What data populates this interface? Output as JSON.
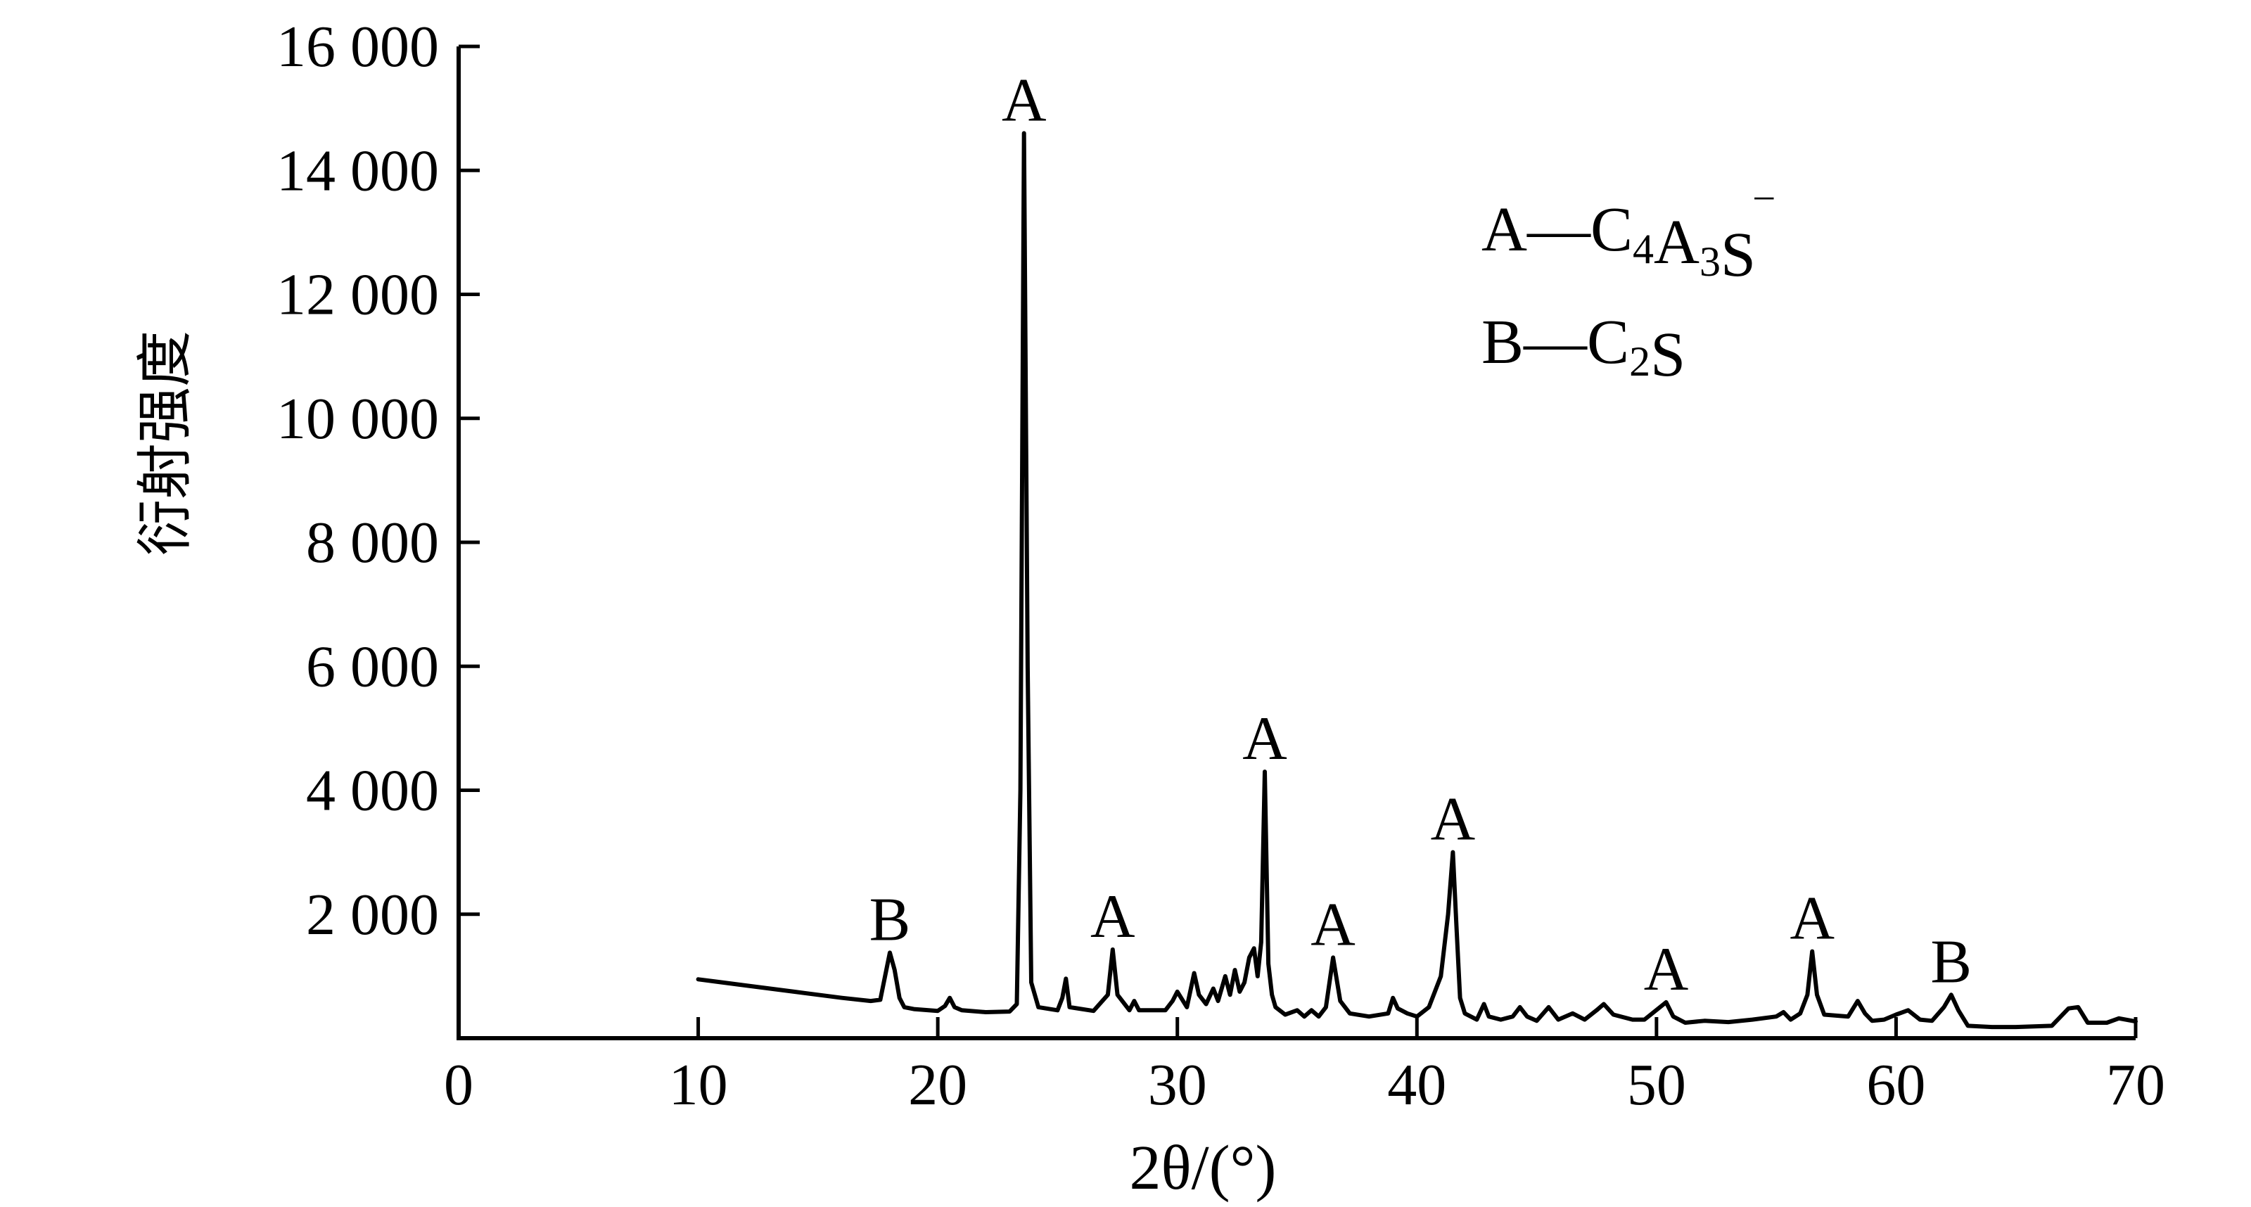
{
  "chart_data": {
    "type": "line",
    "xlabel": "2θ/(°)",
    "ylabel": "衍射强度",
    "xlim": [
      0,
      70
    ],
    "ylim": [
      0,
      16000
    ],
    "x_ticks": [
      0,
      10,
      20,
      30,
      40,
      50,
      60,
      70
    ],
    "x_tick_labels": [
      "0",
      "10",
      "20",
      "30",
      "40",
      "50",
      "60",
      "70"
    ],
    "y_ticks": [
      2000,
      4000,
      6000,
      8000,
      10000,
      12000,
      14000,
      16000
    ],
    "y_tick_labels": [
      "2 000",
      "4 000",
      "6 000",
      "8 000",
      "10 000",
      "12 000",
      "14 000",
      "16 000"
    ],
    "grid": false,
    "legend_position": "top-right",
    "legend": [
      {
        "key": "A",
        "sep": "—",
        "formula": "C",
        "parts": [
          [
            "C",
            ""
          ],
          [
            "4",
            "sub"
          ],
          [
            "A",
            ""
          ],
          [
            "3",
            "sub"
          ],
          [
            "S",
            ""
          ],
          [
            "‾",
            "sup"
          ]
        ]
      },
      {
        "key": "B",
        "sep": "—",
        "formula": "C",
        "parts": [
          [
            "C",
            ""
          ],
          [
            "2",
            "sub"
          ],
          [
            "S",
            ""
          ]
        ]
      }
    ],
    "series": [
      {
        "x": [
          10,
          12,
          14,
          16,
          17.2,
          17.6,
          17.8,
          18.0,
          18.2,
          18.4,
          18.6,
          19.0,
          20.0,
          20.3,
          20.5,
          20.7,
          21.0,
          22.0,
          23.0,
          23.3,
          23.45,
          23.6,
          23.75,
          23.9,
          24.2,
          25.0,
          25.2,
          25.35,
          25.5,
          26.5,
          27.1,
          27.3,
          27.5,
          28.0,
          28.2,
          28.4,
          29.5,
          29.8,
          30.0,
          30.4,
          30.7,
          30.9,
          31.2,
          31.5,
          31.7,
          32.0,
          32.2,
          32.4,
          32.6,
          32.8,
          33.0,
          33.2,
          33.35,
          33.5,
          33.65,
          33.8,
          33.95,
          34.1,
          34.5,
          35.0,
          35.3,
          35.6,
          35.9,
          36.2,
          36.5,
          36.8,
          37.2,
          38.0,
          38.8,
          39.0,
          39.2,
          39.6,
          40.0,
          40.5,
          41.0,
          41.3,
          41.5,
          41.65,
          41.8,
          42.0,
          42.5,
          42.8,
          43.0,
          43.5,
          44.0,
          44.3,
          44.6,
          45.0,
          45.5,
          45.9,
          46.5,
          47.0,
          47.5,
          47.8,
          48.2,
          49.0,
          49.5,
          50.4,
          50.7,
          51.2,
          52.0,
          53.0,
          54.0,
          55.0,
          55.3,
          55.6,
          56.0,
          56.3,
          56.5,
          56.7,
          57.0,
          58.0,
          58.4,
          58.7,
          59.0,
          59.5,
          60.0,
          60.5,
          61.0,
          61.5,
          62.0,
          62.3,
          62.6,
          63.0,
          64.0,
          65.0,
          66.5,
          67.2,
          67.6,
          68.0,
          68.8,
          69.3,
          70.0
        ],
        "y": [
          950,
          850,
          750,
          650,
          600,
          620,
          1000,
          1380,
          1100,
          650,
          500,
          470,
          440,
          520,
          650,
          500,
          450,
          420,
          430,
          550,
          4000,
          14600,
          6000,
          900,
          500,
          450,
          650,
          960,
          500,
          440,
          700,
          1430,
          700,
          450,
          600,
          450,
          450,
          600,
          750,
          500,
          1050,
          700,
          550,
          800,
          600,
          1000,
          700,
          1100,
          750,
          900,
          1300,
          1450,
          1000,
          1550,
          4300,
          1200,
          700,
          500,
          380,
          450,
          350,
          450,
          350,
          500,
          1300,
          600,
          400,
          350,
          400,
          650,
          480,
          400,
          350,
          500,
          1000,
          2000,
          3000,
          1800,
          650,
          400,
          300,
          550,
          350,
          300,
          350,
          500,
          350,
          280,
          500,
          300,
          400,
          300,
          450,
          550,
          380,
          300,
          300,
          580,
          350,
          250,
          280,
          260,
          300,
          350,
          420,
          300,
          400,
          700,
          1400,
          700,
          380,
          350,
          600,
          400,
          280,
          300,
          380,
          450,
          300,
          280,
          500,
          700,
          450,
          200,
          180,
          180,
          200,
          480,
          500,
          250,
          250,
          320,
          270
        ]
      }
    ],
    "annotations": [
      {
        "text": "B",
        "x": 18.0,
        "y": 1380
      },
      {
        "text": "A",
        "x": 23.6,
        "y": 14600
      },
      {
        "text": "A",
        "x": 27.3,
        "y": 1430
      },
      {
        "text": "A",
        "x": 33.65,
        "y": 4300
      },
      {
        "text": "A",
        "x": 36.5,
        "y": 1300
      },
      {
        "text": "A",
        "x": 41.5,
        "y": 3000
      },
      {
        "text": "A",
        "x": 50.4,
        "y": 580
      },
      {
        "text": "A",
        "x": 56.5,
        "y": 1400
      },
      {
        "text": "B",
        "x": 62.3,
        "y": 700
      }
    ]
  }
}
